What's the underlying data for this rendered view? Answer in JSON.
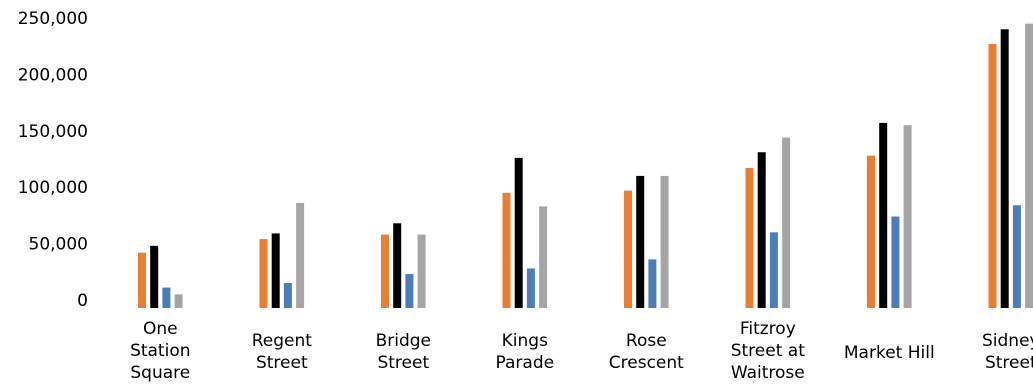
{
  "chart_data": {
    "type": "bar",
    "title": "",
    "xlabel": "",
    "ylabel": "",
    "ylim": [
      0,
      250000
    ],
    "yticks": [
      0,
      50000,
      100000,
      150000,
      200000,
      250000
    ],
    "ytick_labels": [
      "0",
      "50,000",
      "100,000",
      "150,000",
      "200,000",
      "250,000"
    ],
    "grid": false,
    "legend": "none",
    "categories": [
      [
        "One",
        "Station",
        "Square"
      ],
      [
        "Regent",
        "Street"
      ],
      [
        "Bridge",
        "Street"
      ],
      [
        "Kings",
        "Parade"
      ],
      [
        "Rose",
        "Crescent"
      ],
      [
        "Fitzroy",
        "Street at",
        "Waitrose"
      ],
      [
        "Market Hill"
      ],
      [
        "Sidney",
        "Street"
      ]
    ],
    "series": [
      {
        "color": "#ED7D31",
        "values": [
          42000,
          54000,
          58000,
          95000,
          97000,
          117000,
          128000,
          227000
        ]
      },
      {
        "color": "#000000",
        "values": [
          48000,
          59000,
          68000,
          126000,
          110000,
          131000,
          157000,
          240000
        ]
      },
      {
        "color": "#4A7EBB",
        "values": [
          11000,
          15000,
          23000,
          28000,
          36000,
          60000,
          74000,
          84000
        ]
      },
      {
        "color": "#A5A5A5",
        "values": [
          5000,
          86000,
          58000,
          83000,
          110000,
          144000,
          155000,
          245000
        ]
      }
    ]
  }
}
